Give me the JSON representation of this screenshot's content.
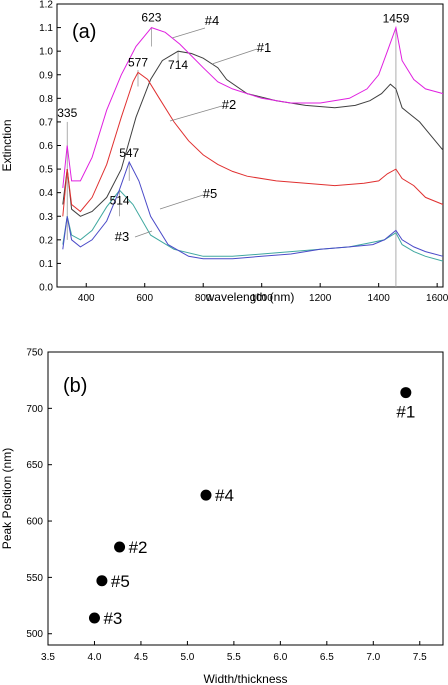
{
  "chart_data": [
    {
      "type": "line",
      "panel_label": "(a)",
      "xlabel": "wavelength (nm)",
      "ylabel": "Extinction",
      "xlim": [
        300,
        1620
      ],
      "ylim": [
        0.0,
        1.2
      ],
      "xticks": [
        400,
        600,
        800,
        1000,
        1200,
        1400,
        1600
      ],
      "xtick_labels": [
        "400",
        "600",
        "800",
        "1000",
        "1200",
        "1400",
        "1600"
      ],
      "yticks": [
        0.0,
        0.1,
        0.2,
        0.3,
        0.4,
        0.5,
        0.6,
        0.7,
        0.8,
        0.9,
        1.0,
        1.1,
        1.2
      ],
      "ytick_labels": [
        "0.0",
        "0.1",
        "0.2",
        "0.3",
        "0.4",
        "0.5",
        "0.6",
        "0.7",
        "0.8",
        "0.9",
        "1.0",
        "1.1",
        "1.2"
      ],
      "series": [
        {
          "name": "#1",
          "color": "#404040",
          "x": [
            320,
            335,
            350,
            380,
            420,
            470,
            520,
            570,
            620,
            660,
            714,
            760,
            800,
            850,
            880,
            950,
            1050,
            1150,
            1250,
            1320,
            1370,
            1410,
            1440,
            1459,
            1480,
            1500,
            1540,
            1580,
            1620
          ],
          "y": [
            0.35,
            0.5,
            0.33,
            0.3,
            0.32,
            0.38,
            0.5,
            0.72,
            0.88,
            0.96,
            1.0,
            0.99,
            0.97,
            0.93,
            0.88,
            0.82,
            0.79,
            0.77,
            0.76,
            0.77,
            0.79,
            0.82,
            0.86,
            0.84,
            0.76,
            0.74,
            0.7,
            0.64,
            0.58
          ]
        },
        {
          "name": "#2",
          "color": "#e03030",
          "x": [
            320,
            335,
            350,
            380,
            420,
            470,
            520,
            560,
            577,
            610,
            650,
            700,
            750,
            800,
            850,
            900,
            950,
            1050,
            1150,
            1250,
            1350,
            1400,
            1430,
            1459,
            1480,
            1520,
            1560,
            1620
          ],
          "y": [
            0.3,
            0.5,
            0.35,
            0.32,
            0.38,
            0.52,
            0.72,
            0.87,
            0.91,
            0.88,
            0.8,
            0.7,
            0.62,
            0.56,
            0.52,
            0.49,
            0.47,
            0.45,
            0.44,
            0.43,
            0.44,
            0.45,
            0.48,
            0.5,
            0.46,
            0.43,
            0.38,
            0.35
          ]
        },
        {
          "name": "#3",
          "color": "#40a8a0",
          "x": [
            320,
            335,
            350,
            380,
            420,
            470,
            514,
            560,
            620,
            700,
            800,
            900,
            1000,
            1100,
            1200,
            1300,
            1380,
            1420,
            1459,
            1480,
            1520,
            1560,
            1620
          ],
          "y": [
            0.18,
            0.3,
            0.22,
            0.2,
            0.24,
            0.34,
            0.41,
            0.35,
            0.22,
            0.16,
            0.13,
            0.13,
            0.14,
            0.15,
            0.16,
            0.17,
            0.19,
            0.2,
            0.23,
            0.18,
            0.15,
            0.13,
            0.11
          ]
        },
        {
          "name": "#4",
          "color": "#e020e0",
          "x": [
            320,
            335,
            350,
            380,
            420,
            470,
            520,
            570,
            623,
            670,
            720,
            760,
            800,
            850,
            900,
            1000,
            1100,
            1200,
            1300,
            1360,
            1400,
            1430,
            1459,
            1480,
            1520,
            1560,
            1620
          ],
          "y": [
            0.42,
            0.6,
            0.45,
            0.45,
            0.55,
            0.75,
            0.9,
            1.02,
            1.1,
            1.08,
            1.03,
            0.98,
            0.93,
            0.87,
            0.84,
            0.8,
            0.78,
            0.78,
            0.8,
            0.84,
            0.9,
            1.0,
            1.1,
            0.96,
            0.88,
            0.84,
            0.82
          ]
        },
        {
          "name": "#5",
          "color": "#4a4ac8",
          "x": [
            320,
            335,
            350,
            380,
            420,
            470,
            510,
            547,
            580,
            620,
            680,
            750,
            800,
            900,
            1000,
            1100,
            1200,
            1300,
            1380,
            1420,
            1459,
            1480,
            1520,
            1560,
            1620
          ],
          "y": [
            0.16,
            0.3,
            0.2,
            0.17,
            0.2,
            0.28,
            0.4,
            0.53,
            0.45,
            0.3,
            0.18,
            0.13,
            0.12,
            0.12,
            0.13,
            0.14,
            0.16,
            0.17,
            0.18,
            0.2,
            0.24,
            0.2,
            0.17,
            0.15,
            0.13
          ]
        }
      ],
      "annotations": [
        {
          "text": "335",
          "x": 335,
          "y": 0.7
        },
        {
          "text": "623",
          "x": 623,
          "y": 1.1
        },
        {
          "text": "577",
          "x": 577,
          "y": 0.91
        },
        {
          "text": "714",
          "x": 714,
          "y": 1.0
        },
        {
          "text": "547",
          "x": 547,
          "y": 0.53
        },
        {
          "text": "514",
          "x": 514,
          "y": 0.41
        },
        {
          "text": "1459",
          "x": 1459,
          "y": 1.1
        }
      ],
      "series_labels": [
        "#4",
        "#1",
        "#2",
        "#5",
        "#3"
      ]
    },
    {
      "type": "scatter",
      "panel_label": "(b)",
      "xlabel": "Width/thickness",
      "ylabel": "Peak Position (nm)",
      "xlim": [
        3.5,
        7.75
      ],
      "ylim": [
        490,
        750
      ],
      "xticks": [
        3.5,
        4.0,
        4.5,
        5.0,
        5.5,
        6.0,
        6.5,
        7.0,
        7.5
      ],
      "xtick_labels": [
        "3.5",
        "4.0",
        "4.5",
        "5.0",
        "5.5",
        "6.0",
        "6.5",
        "7.0",
        "7.5"
      ],
      "yticks": [
        500,
        550,
        600,
        650,
        700,
        750
      ],
      "ytick_labels": [
        "500",
        "550",
        "600",
        "650",
        "700",
        "750"
      ],
      "points": [
        {
          "label": "#1",
          "x": 7.35,
          "y": 714
        },
        {
          "label": "#4",
          "x": 5.2,
          "y": 623
        },
        {
          "label": "#2",
          "x": 4.27,
          "y": 577
        },
        {
          "label": "#5",
          "x": 4.08,
          "y": 547
        },
        {
          "label": "#3",
          "x": 4.0,
          "y": 514
        }
      ]
    }
  ]
}
